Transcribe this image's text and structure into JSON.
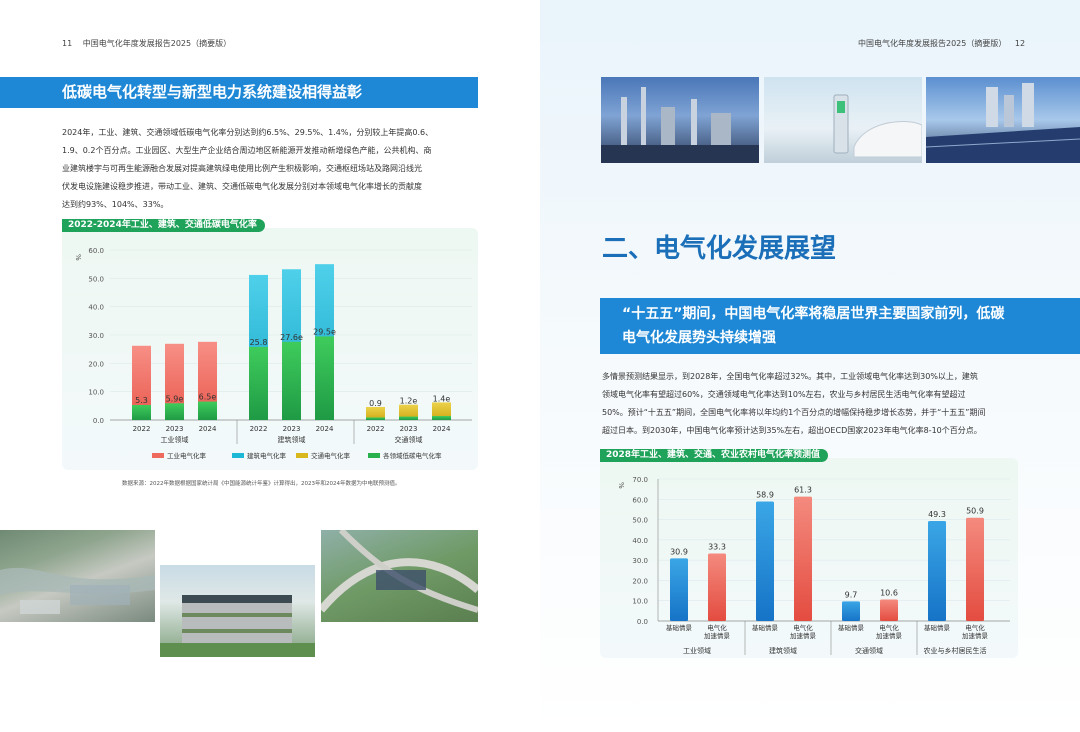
{
  "header_left": {
    "page_number": "11",
    "title": "中国电气化年度发展报告2025（摘要版）"
  },
  "header_right": {
    "page_number": "12",
    "title": "中国电气化年度发展报告2025（摘要版）"
  },
  "left": {
    "banner": "低碳电气化转型与新型电力系统建设相得益彰",
    "paragraph_lines": [
      "2024年，工业、建筑、交通领域低碳电气化率分别达到约6.5%、29.5%、1.4%，分别较上年提高0.6、",
      "1.9、0.2个百分点。工业园区、大型生产企业结合周边地区新能源开发推动新增绿色产能，公共机构、商",
      "业建筑楼宇与可再生能源融合发展对提高建筑绿电使用比例产生积极影响，交通枢纽场站及路网沿线光",
      "伏发电设施建设稳步推进，带动工业、建筑、交通低碳电气化发展分别对本领域电气化率增长的贡献度",
      "达到约93%、104%、33%。"
    ],
    "chart_tag": "2022-2024年工业、建筑、交通低碳电气化率",
    "source_note": "数据来源：2022年数据根据国家统计局《中国能源统计年鉴》计算得出，2023年和2024年数据为中电联预测值。"
  },
  "right": {
    "section_title": "二、电气化发展展望",
    "banner_lines": [
      "“十五五”期间，中国电气化率将稳居世界主要国家前列，低碳",
      "电气化发展势头持续增强"
    ],
    "paragraph_lines": [
      "多情景预测结果显示，到2028年，全国电气化率超过32%。其中，工业领域电气化率达到30%以上，建筑",
      "领域电气化率有望超过60%，交通领域电气化率达到10%左右，农业与乡村居民生活电气化率有望超过",
      "50%。预计“十五五”期间，全国电气化率将以年均约1个百分点的增幅保持稳步增长态势，并于“十五五”期间",
      "超过日本。到2030年，中国电气化率预计达到35%左右，超出OECD国家2023年电气化率8-10个百分点。"
    ],
    "chart_tag": "2028年工业、建筑、交通、农业农村电气化率预测值"
  },
  "colors": {
    "blue": "#1e88d6",
    "green": "#1fa25a",
    "red": "#ee6a5e",
    "cyan": "#1db8d6",
    "yellow": "#d8b81c",
    "green_bar": "#27b04d"
  },
  "chart_data": [
    {
      "type": "bar",
      "stacked": "overlay",
      "ylabel": "%",
      "ylim": [
        0,
        60
      ],
      "yticks": [
        "0.0",
        "10.0",
        "20.0",
        "30.0",
        "40.0",
        "50.0",
        "60.0"
      ],
      "groups": [
        {
          "name": "工业领域",
          "years": [
            "2022",
            "2023",
            "2024"
          ],
          "total": [
            26.2,
            26.9,
            27.6
          ],
          "low_carbon": [
            5.3,
            5.9,
            6.5
          ],
          "labels": [
            "5.3",
            "5.9e",
            "6.5e"
          ],
          "color": "#ee6a5e"
        },
        {
          "name": "建筑领域",
          "years": [
            "2022",
            "2023",
            "2024"
          ],
          "total": [
            51.2,
            53.2,
            55.0
          ],
          "low_carbon": [
            25.8,
            27.6,
            29.5
          ],
          "labels": [
            "25.8",
            "27.6e",
            "29.5e"
          ],
          "color": "#1db8d6"
        },
        {
          "name": "交通领域",
          "years": [
            "2022",
            "2023",
            "2024"
          ],
          "total": [
            4.6,
            5.4,
            6.2
          ],
          "low_carbon": [
            0.9,
            1.2,
            1.4
          ],
          "labels": [
            "0.9",
            "1.2e",
            "1.4e"
          ],
          "color": "#d8b81c"
        }
      ],
      "legend": [
        "工业电气化率",
        "建筑电气化率",
        "交通电气化率",
        "各领域低碳电气化率"
      ]
    },
    {
      "type": "bar",
      "ylabel": "%",
      "ylim": [
        0,
        70
      ],
      "yticks": [
        "0.0",
        "10.0",
        "20.0",
        "30.0",
        "40.0",
        "50.0",
        "60.0",
        "70.0"
      ],
      "groups": [
        {
          "name": "工业领域",
          "scenarios": [
            "基础情景",
            "电气化\n加速情景"
          ],
          "values": [
            30.9,
            33.3
          ],
          "labels": [
            "30.9",
            "33.3"
          ]
        },
        {
          "name": "建筑领域",
          "scenarios": [
            "基础情景",
            "电气化\n加速情景"
          ],
          "values": [
            58.9,
            61.3
          ],
          "labels": [
            "58.9",
            "61.3"
          ]
        },
        {
          "name": "交通领域",
          "scenarios": [
            "基础情景",
            "电气化\n加速情景"
          ],
          "values": [
            9.7,
            10.6
          ],
          "labels": [
            "9.7",
            "10.6"
          ]
        },
        {
          "name": "农业与乡村居民生活",
          "scenarios": [
            "基础情景",
            "电气化\n加速情景"
          ],
          "values": [
            49.3,
            50.9
          ],
          "labels": [
            "49.3",
            "50.9"
          ]
        }
      ]
    }
  ]
}
